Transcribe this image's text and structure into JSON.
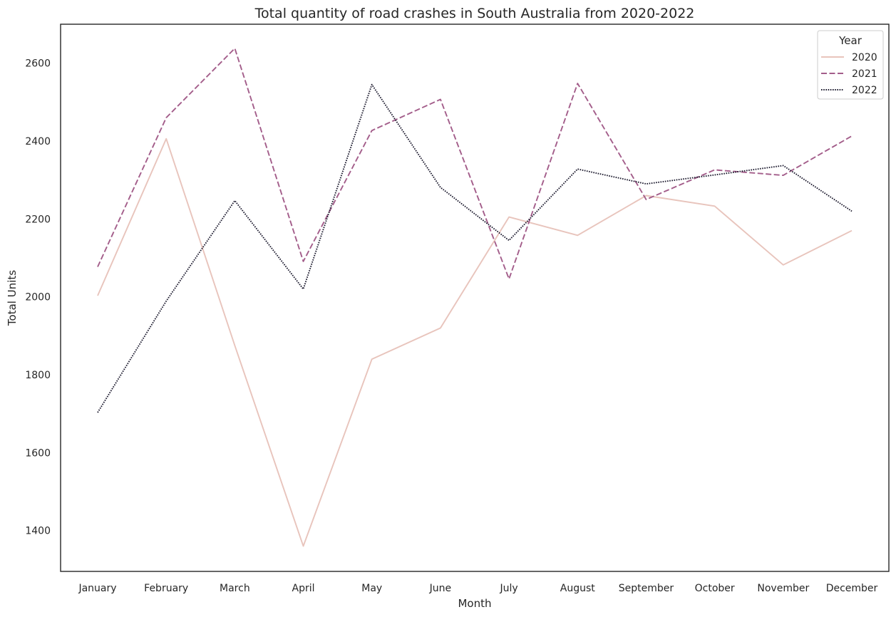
{
  "chart_data": {
    "type": "line",
    "title": "Total quantity of road crashes in South Australia from 2020-2022",
    "xlabel": "Month",
    "ylabel": "Total Units",
    "categories": [
      "January",
      "February",
      "March",
      "April",
      "May",
      "June",
      "July",
      "August",
      "September",
      "October",
      "November",
      "December"
    ],
    "ylim": [
      1295,
      2700
    ],
    "yticks": [
      1400,
      1600,
      1800,
      2000,
      2200,
      2400,
      2600
    ],
    "grid": false,
    "legend": {
      "title": "Year",
      "placement": "top-right"
    },
    "series": [
      {
        "name": "2020",
        "color": "#e8c4bc",
        "style": "solid",
        "values": [
          2003,
          2406,
          1875,
          1360,
          1840,
          1920,
          2205,
          2158,
          2260,
          2233,
          2082,
          2170
        ]
      },
      {
        "name": "2021",
        "color": "#a35d8a",
        "style": "dashed",
        "values": [
          2077,
          2460,
          2638,
          2091,
          2427,
          2507,
          2046,
          2548,
          2250,
          2326,
          2312,
          2413
        ]
      },
      {
        "name": "2022",
        "color": "#1c1a2e",
        "style": "dotted",
        "values": [
          1703,
          1989,
          2247,
          2020,
          2545,
          2281,
          2145,
          2328,
          2290,
          2313,
          2337,
          2220
        ]
      }
    ]
  }
}
